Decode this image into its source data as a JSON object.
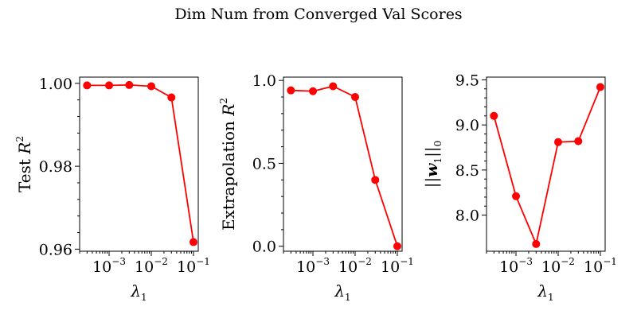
{
  "figure": {
    "title": "Dim Num from Converged Val Scores"
  },
  "colors": {
    "series": "#ff0000",
    "axes": "#000000"
  },
  "chart_data": [
    {
      "type": "line",
      "x_scale": "log",
      "x": [
        0.0003,
        0.001,
        0.003,
        0.01,
        0.03,
        0.1
      ],
      "x_tick_labels": [
        {
          "base": "10",
          "exp": "−3"
        },
        {
          "base": "10",
          "exp": "−2"
        },
        {
          "base": "10",
          "exp": "−1"
        }
      ],
      "xlabel": {
        "symbol": "λ",
        "sub": "1"
      },
      "ylabel": {
        "text": "Test ",
        "symbol": "R",
        "sup": "2"
      },
      "ylim": [
        0.9595,
        1.0015
      ],
      "y_ticks": [
        0.96,
        0.98,
        1.0
      ],
      "y_tick_labels": [
        "0.96",
        "0.98",
        "1.00"
      ],
      "series": [
        {
          "values": [
            0.9995,
            0.9995,
            0.9996,
            0.9993,
            0.9966,
            0.9617
          ]
        }
      ]
    },
    {
      "type": "line",
      "x_scale": "log",
      "x": [
        0.0003,
        0.001,
        0.003,
        0.01,
        0.03,
        0.1
      ],
      "x_tick_labels": [
        {
          "base": "10",
          "exp": "−3"
        },
        {
          "base": "10",
          "exp": "−2"
        },
        {
          "base": "10",
          "exp": "−1"
        }
      ],
      "xlabel": {
        "symbol": "λ",
        "sub": "1"
      },
      "ylabel": {
        "text": "Extrapolation ",
        "symbol": "R",
        "sup": "2"
      },
      "ylim": [
        -0.03,
        1.02
      ],
      "y_ticks": [
        0.0,
        0.5,
        1.0
      ],
      "y_tick_labels": [
        "0.0",
        "0.5",
        "1.0"
      ],
      "series": [
        {
          "values": [
            0.94,
            0.935,
            0.965,
            0.9,
            0.4,
            0.0
          ]
        }
      ]
    },
    {
      "type": "line",
      "x_scale": "log",
      "x": [
        0.0003,
        0.001,
        0.003,
        0.01,
        0.03,
        0.1
      ],
      "x_tick_labels": [
        {
          "base": "10",
          "exp": "−3"
        },
        {
          "base": "10",
          "exp": "−2"
        },
        {
          "base": "10",
          "exp": "−1"
        }
      ],
      "xlabel": {
        "symbol": "λ",
        "sub": "1"
      },
      "ylabel": {
        "pre": "||",
        "symbol": "w",
        "sub": "1",
        "post": "||",
        "post_sub": "0"
      },
      "ylim": [
        7.6,
        9.53
      ],
      "y_ticks": [
        8.0,
        8.5,
        9.0,
        9.5
      ],
      "y_tick_labels": [
        "8.0",
        "8.5",
        "9.0",
        "9.5"
      ],
      "series": [
        {
          "values": [
            9.1,
            8.21,
            7.68,
            8.81,
            8.82,
            9.42
          ]
        }
      ]
    }
  ]
}
